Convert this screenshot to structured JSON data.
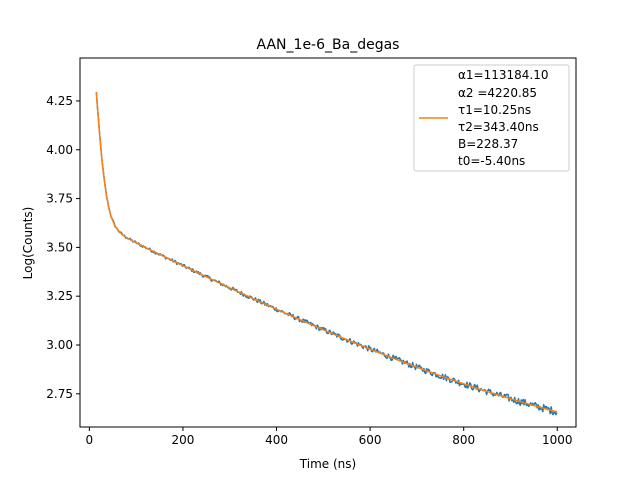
{
  "chart_data": {
    "type": "line",
    "title": "AAN_1e-6_Ba_degas",
    "xlabel": "Time (ns)",
    "ylabel": "Log(Counts)",
    "xlim": [
      -20,
      1040
    ],
    "ylim": [
      2.58,
      4.47
    ],
    "xticks": [
      0,
      200,
      400,
      600,
      800,
      1000
    ],
    "yticks": [
      2.75,
      3.0,
      3.25,
      3.5,
      3.75,
      4.0,
      4.25
    ],
    "ytick_labels": [
      "2.75",
      "3.00",
      "3.25",
      "3.50",
      "3.75",
      "4.00",
      "4.25"
    ],
    "grid": false,
    "legend_position": "top-right",
    "legend_entries": [
      "α1=113184.10",
      "α2 =4220.85",
      "τ1=10.25ns",
      "τ2=343.40ns",
      "B=228.37",
      "t0=-5.40ns"
    ],
    "fit_params": {
      "a1": 113184.1,
      "a2": 4220.85,
      "tau1": 10.25,
      "tau2": 343.4,
      "B": 228.37,
      "t0": -5.4
    },
    "data_range": [
      15,
      1000
    ],
    "data_end_value": 2.83,
    "series": [
      {
        "role": "data",
        "color": "#1f77b4"
      },
      {
        "role": "fit",
        "color": "#ff7f0e"
      }
    ]
  }
}
